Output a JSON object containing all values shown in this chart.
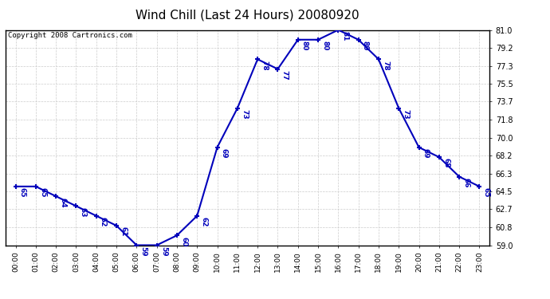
{
  "title": "Wind Chill (Last 24 Hours) 20080920",
  "copyright": "Copyright 2008 Cartronics.com",
  "hours": [
    0,
    1,
    2,
    3,
    4,
    5,
    6,
    7,
    8,
    9,
    10,
    11,
    12,
    13,
    14,
    15,
    16,
    17,
    18,
    19,
    20,
    21,
    22,
    23
  ],
  "values": [
    65,
    65,
    64,
    63,
    62,
    61,
    59,
    59,
    60,
    62,
    69,
    73,
    78,
    77,
    80,
    80,
    81,
    80,
    78,
    73,
    69,
    68,
    66,
    65
  ],
  "x_labels": [
    "00:00",
    "01:00",
    "02:00",
    "03:00",
    "04:00",
    "05:00",
    "06:00",
    "07:00",
    "08:00",
    "09:00",
    "10:00",
    "11:00",
    "12:00",
    "13:00",
    "14:00",
    "15:00",
    "16:00",
    "17:00",
    "18:00",
    "19:00",
    "20:00",
    "21:00",
    "22:00",
    "23:00"
  ],
  "y_ticks": [
    59.0,
    60.8,
    62.7,
    64.5,
    66.3,
    68.2,
    70.0,
    71.8,
    73.7,
    75.5,
    77.3,
    79.2,
    81.0
  ],
  "ylim": [
    59.0,
    81.0
  ],
  "line_color": "#0000BB",
  "marker_color": "#0000BB",
  "grid_color": "#CCCCCC",
  "bg_color": "#FFFFFF",
  "title_fontsize": 11,
  "annotation_fontsize": 6.5,
  "copyright_fontsize": 6.5
}
